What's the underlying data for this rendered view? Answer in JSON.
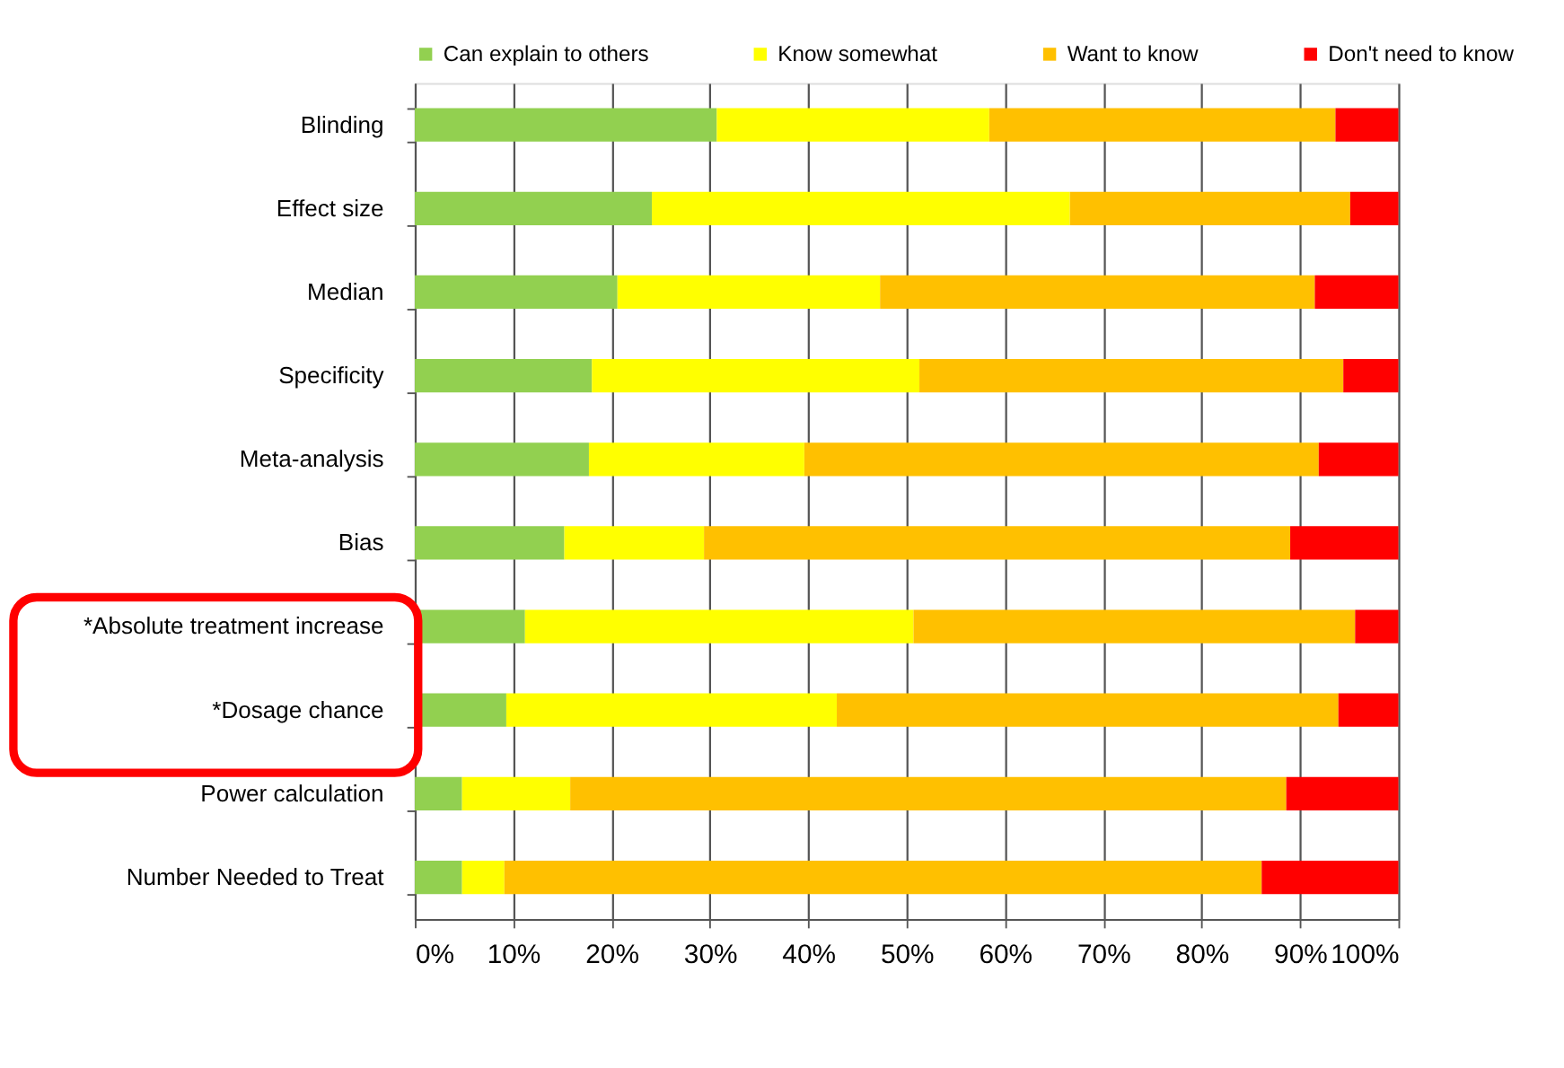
{
  "chart_data": {
    "type": "bar",
    "orientation": "horizontal",
    "stacked": true,
    "categories": [
      "Blinding",
      "Effect size",
      "Median",
      "Specificity",
      "Meta-analysis",
      "Bias",
      "*Absolute treatment increase",
      "*Dosage chance",
      "Power calculation",
      "Number Needed to Treat"
    ],
    "series": [
      {
        "name": "Can explain to others",
        "color": "#92d050",
        "values": [
          30.7,
          24.1,
          20.6,
          18.0,
          17.7,
          15.2,
          11.2,
          9.3,
          4.8,
          4.8
        ]
      },
      {
        "name": "Know somewhat",
        "color": "#ffff00",
        "values": [
          27.7,
          42.5,
          26.7,
          33.3,
          21.9,
          14.2,
          39.5,
          33.6,
          11.0,
          4.3
        ]
      },
      {
        "name": "Want to know",
        "color": "#ffc000",
        "values": [
          35.2,
          28.5,
          44.2,
          43.1,
          52.3,
          59.6,
          44.9,
          51.0,
          72.8,
          77.0
        ]
      },
      {
        "name": "Don't need to know",
        "color": "#ff0000",
        "values": [
          6.4,
          4.9,
          8.5,
          5.6,
          8.1,
          11.0,
          4.4,
          6.1,
          11.4,
          13.9
        ]
      }
    ],
    "xlim": [
      0,
      100
    ],
    "xticks": [
      {
        "value": 0,
        "label": "0%"
      },
      {
        "value": 10,
        "label": "10%"
      },
      {
        "value": 20,
        "label": "20%"
      },
      {
        "value": 30,
        "label": "30%"
      },
      {
        "value": 40,
        "label": "40%"
      },
      {
        "value": 50,
        "label": "50%"
      },
      {
        "value": 60,
        "label": "60%"
      },
      {
        "value": 70,
        "label": "70%"
      },
      {
        "value": 80,
        "label": "80%"
      },
      {
        "value": 90,
        "label": "90%"
      },
      {
        "value": 100,
        "label": "100%"
      }
    ],
    "grid": "x",
    "legend": "top"
  }
}
